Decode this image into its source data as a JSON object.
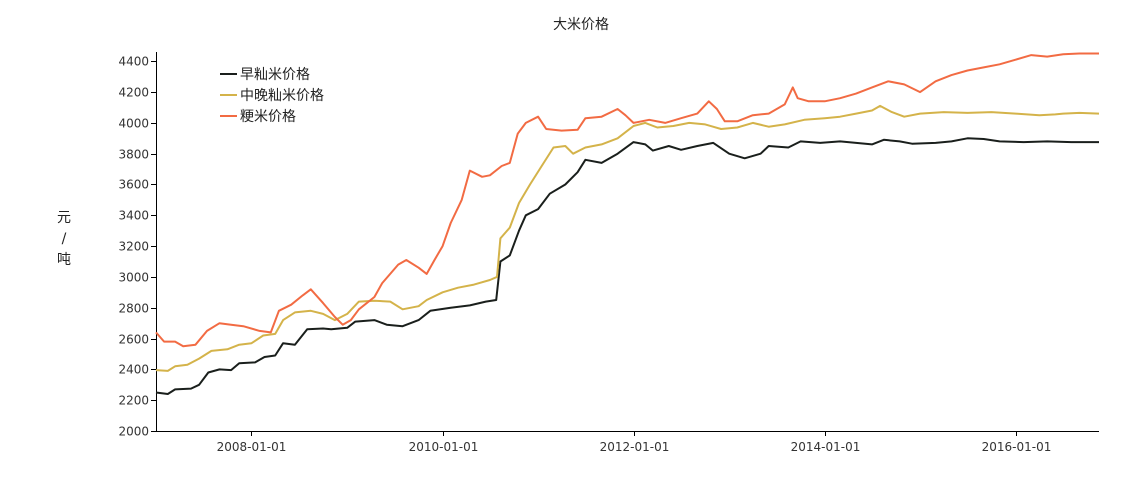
{
  "chart_data": {
    "type": "line",
    "title": "大米价格",
    "ylabel_chars": [
      "元",
      "/",
      "吨"
    ],
    "ylim": [
      2000,
      4460
    ],
    "xlim": [
      "2007-01-01",
      "2016-11-15"
    ],
    "yticks": [
      2000,
      2200,
      2400,
      2600,
      2800,
      3000,
      3200,
      3400,
      3600,
      3800,
      4000,
      4200,
      4400
    ],
    "xticks": [
      "2008-01-01",
      "2010-01-01",
      "2012-01-01",
      "2014-01-01",
      "2016-01-01"
    ],
    "legend_position": "top-left",
    "series": [
      {
        "name": "早籼米价格",
        "color": "#1a1f1c",
        "points": [
          [
            "2007-01-01",
            2250
          ],
          [
            "2007-02-15",
            2240
          ],
          [
            "2007-03-15",
            2270
          ],
          [
            "2007-05-15",
            2275
          ],
          [
            "2007-06-15",
            2300
          ],
          [
            "2007-07-20",
            2380
          ],
          [
            "2007-09-01",
            2400
          ],
          [
            "2007-10-15",
            2395
          ],
          [
            "2007-11-15",
            2440
          ],
          [
            "2008-01-15",
            2445
          ],
          [
            "2008-02-20",
            2480
          ],
          [
            "2008-04-01",
            2490
          ],
          [
            "2008-05-01",
            2570
          ],
          [
            "2008-06-15",
            2560
          ],
          [
            "2008-08-01",
            2660
          ],
          [
            "2008-10-01",
            2665
          ],
          [
            "2008-11-01",
            2660
          ],
          [
            "2009-01-01",
            2670
          ],
          [
            "2009-02-01",
            2710
          ],
          [
            "2009-04-15",
            2720
          ],
          [
            "2009-06-01",
            2690
          ],
          [
            "2009-08-01",
            2680
          ],
          [
            "2009-10-01",
            2720
          ],
          [
            "2009-11-15",
            2780
          ],
          [
            "2010-02-01",
            2800
          ],
          [
            "2010-04-15",
            2815
          ],
          [
            "2010-06-15",
            2840
          ],
          [
            "2010-07-25",
            2850
          ],
          [
            "2010-08-10",
            3100
          ],
          [
            "2010-09-15",
            3140
          ],
          [
            "2010-10-20",
            3300
          ],
          [
            "2010-11-15",
            3400
          ],
          [
            "2011-01-01",
            3440
          ],
          [
            "2011-02-15",
            3540
          ],
          [
            "2011-04-15",
            3600
          ],
          [
            "2011-06-01",
            3680
          ],
          [
            "2011-07-01",
            3760
          ],
          [
            "2011-09-01",
            3740
          ],
          [
            "2011-11-01",
            3800
          ],
          [
            "2012-01-01",
            3875
          ],
          [
            "2012-02-15",
            3860
          ],
          [
            "2012-03-15",
            3820
          ],
          [
            "2012-05-15",
            3850
          ],
          [
            "2012-07-01",
            3825
          ],
          [
            "2012-09-01",
            3850
          ],
          [
            "2012-11-01",
            3870
          ],
          [
            "2013-01-01",
            3800
          ],
          [
            "2013-03-01",
            3770
          ],
          [
            "2013-05-01",
            3800
          ],
          [
            "2013-06-01",
            3850
          ],
          [
            "2013-08-15",
            3840
          ],
          [
            "2013-10-01",
            3880
          ],
          [
            "2013-12-15",
            3870
          ],
          [
            "2014-03-01",
            3880
          ],
          [
            "2014-05-01",
            3870
          ],
          [
            "2014-07-01",
            3860
          ],
          [
            "2014-08-15",
            3890
          ],
          [
            "2014-10-15",
            3880
          ],
          [
            "2014-12-01",
            3865
          ],
          [
            "2015-03-01",
            3870
          ],
          [
            "2015-05-01",
            3880
          ],
          [
            "2015-07-01",
            3900
          ],
          [
            "2015-09-01",
            3895
          ],
          [
            "2015-11-01",
            3880
          ],
          [
            "2016-02-01",
            3875
          ],
          [
            "2016-05-01",
            3880
          ],
          [
            "2016-08-01",
            3875
          ],
          [
            "2016-11-15",
            3875
          ]
        ]
      },
      {
        "name": "中晚籼米价格",
        "color": "#d4b34a",
        "points": [
          [
            "2007-01-01",
            2395
          ],
          [
            "2007-02-15",
            2390
          ],
          [
            "2007-03-15",
            2420
          ],
          [
            "2007-05-01",
            2430
          ],
          [
            "2007-06-15",
            2470
          ],
          [
            "2007-08-01",
            2520
          ],
          [
            "2007-10-01",
            2530
          ],
          [
            "2007-11-15",
            2560
          ],
          [
            "2008-01-01",
            2570
          ],
          [
            "2008-02-15",
            2620
          ],
          [
            "2008-04-01",
            2630
          ],
          [
            "2008-05-01",
            2720
          ],
          [
            "2008-06-15",
            2770
          ],
          [
            "2008-08-15",
            2780
          ],
          [
            "2008-10-01",
            2760
          ],
          [
            "2008-11-15",
            2720
          ],
          [
            "2009-01-01",
            2760
          ],
          [
            "2009-02-15",
            2840
          ],
          [
            "2009-04-15",
            2845
          ],
          [
            "2009-06-15",
            2840
          ],
          [
            "2009-08-01",
            2790
          ],
          [
            "2009-10-01",
            2810
          ],
          [
            "2009-11-01",
            2850
          ],
          [
            "2010-01-01",
            2900
          ],
          [
            "2010-03-01",
            2930
          ],
          [
            "2010-05-01",
            2950
          ],
          [
            "2010-07-01",
            2980
          ],
          [
            "2010-07-28",
            3000
          ],
          [
            "2010-08-10",
            3250
          ],
          [
            "2010-09-15",
            3320
          ],
          [
            "2010-10-20",
            3480
          ],
          [
            "2010-12-01",
            3600
          ],
          [
            "2011-01-15",
            3720
          ],
          [
            "2011-03-01",
            3840
          ],
          [
            "2011-04-15",
            3850
          ],
          [
            "2011-05-15",
            3800
          ],
          [
            "2011-07-01",
            3840
          ],
          [
            "2011-09-01",
            3860
          ],
          [
            "2011-11-01",
            3900
          ],
          [
            "2012-01-01",
            3980
          ],
          [
            "2012-02-15",
            4000
          ],
          [
            "2012-04-01",
            3970
          ],
          [
            "2012-06-01",
            3980
          ],
          [
            "2012-08-01",
            4000
          ],
          [
            "2012-10-01",
            3990
          ],
          [
            "2012-12-01",
            3960
          ],
          [
            "2013-02-01",
            3970
          ],
          [
            "2013-04-01",
            4000
          ],
          [
            "2013-06-01",
            3975
          ],
          [
            "2013-08-01",
            3990
          ],
          [
            "2013-10-15",
            4020
          ],
          [
            "2014-01-01",
            4030
          ],
          [
            "2014-03-01",
            4040
          ],
          [
            "2014-05-01",
            4060
          ],
          [
            "2014-07-01",
            4080
          ],
          [
            "2014-08-01",
            4110
          ],
          [
            "2014-09-15",
            4070
          ],
          [
            "2014-11-01",
            4040
          ],
          [
            "2015-01-01",
            4060
          ],
          [
            "2015-04-01",
            4070
          ],
          [
            "2015-07-01",
            4065
          ],
          [
            "2015-10-01",
            4070
          ],
          [
            "2016-01-01",
            4060
          ],
          [
            "2016-04-01",
            4050
          ],
          [
            "2016-06-01",
            4055
          ],
          [
            "2016-07-01",
            4060
          ],
          [
            "2016-09-01",
            4065
          ],
          [
            "2016-11-15",
            4060
          ]
        ]
      },
      {
        "name": "粳米价格",
        "color": "#f26b43",
        "points": [
          [
            "2007-01-01",
            2640
          ],
          [
            "2007-02-01",
            2580
          ],
          [
            "2007-03-15",
            2580
          ],
          [
            "2007-04-15",
            2550
          ],
          [
            "2007-06-01",
            2560
          ],
          [
            "2007-07-15",
            2650
          ],
          [
            "2007-09-01",
            2700
          ],
          [
            "2007-10-15",
            2690
          ],
          [
            "2007-12-01",
            2680
          ],
          [
            "2008-02-01",
            2650
          ],
          [
            "2008-03-15",
            2640
          ],
          [
            "2008-04-15",
            2780
          ],
          [
            "2008-06-01",
            2820
          ],
          [
            "2008-07-15",
            2880
          ],
          [
            "2008-08-15",
            2920
          ],
          [
            "2008-10-01",
            2830
          ],
          [
            "2008-11-15",
            2740
          ],
          [
            "2008-12-15",
            2690
          ],
          [
            "2009-01-15",
            2720
          ],
          [
            "2009-02-15",
            2790
          ],
          [
            "2009-04-15",
            2870
          ],
          [
            "2009-05-15",
            2960
          ],
          [
            "2009-07-15",
            3080
          ],
          [
            "2009-08-15",
            3110
          ],
          [
            "2009-10-01",
            3060
          ],
          [
            "2009-11-01",
            3020
          ],
          [
            "2009-12-01",
            3110
          ],
          [
            "2010-01-01",
            3200
          ],
          [
            "2010-02-01",
            3350
          ],
          [
            "2010-03-15",
            3500
          ],
          [
            "2010-04-15",
            3690
          ],
          [
            "2010-06-01",
            3650
          ],
          [
            "2010-07-01",
            3660
          ],
          [
            "2010-08-15",
            3720
          ],
          [
            "2010-09-15",
            3740
          ],
          [
            "2010-10-15",
            3930
          ],
          [
            "2010-11-15",
            4000
          ],
          [
            "2011-01-01",
            4040
          ],
          [
            "2011-02-01",
            3960
          ],
          [
            "2011-04-01",
            3950
          ],
          [
            "2011-06-01",
            3955
          ],
          [
            "2011-07-01",
            4030
          ],
          [
            "2011-09-01",
            4040
          ],
          [
            "2011-11-01",
            4090
          ],
          [
            "2011-12-01",
            4050
          ],
          [
            "2012-01-01",
            4000
          ],
          [
            "2012-03-01",
            4020
          ],
          [
            "2012-05-01",
            4000
          ],
          [
            "2012-07-01",
            4030
          ],
          [
            "2012-09-01",
            4060
          ],
          [
            "2012-10-15",
            4140
          ],
          [
            "2012-11-15",
            4090
          ],
          [
            "2012-12-15",
            4010
          ],
          [
            "2013-02-01",
            4010
          ],
          [
            "2013-04-01",
            4050
          ],
          [
            "2013-06-01",
            4060
          ],
          [
            "2013-08-01",
            4120
          ],
          [
            "2013-09-01",
            4230
          ],
          [
            "2013-09-20",
            4160
          ],
          [
            "2013-11-01",
            4140
          ],
          [
            "2014-01-01",
            4140
          ],
          [
            "2014-03-01",
            4160
          ],
          [
            "2014-05-01",
            4190
          ],
          [
            "2014-07-01",
            4230
          ],
          [
            "2014-09-01",
            4270
          ],
          [
            "2014-11-01",
            4250
          ],
          [
            "2015-01-01",
            4200
          ],
          [
            "2015-03-01",
            4270
          ],
          [
            "2015-05-01",
            4310
          ],
          [
            "2015-07-01",
            4340
          ],
          [
            "2015-09-01",
            4360
          ],
          [
            "2015-11-01",
            4380
          ],
          [
            "2016-01-01",
            4410
          ],
          [
            "2016-03-01",
            4440
          ],
          [
            "2016-05-01",
            4430
          ],
          [
            "2016-07-01",
            4445
          ],
          [
            "2016-09-01",
            4450
          ],
          [
            "2016-11-15",
            4450
          ]
        ]
      }
    ]
  }
}
